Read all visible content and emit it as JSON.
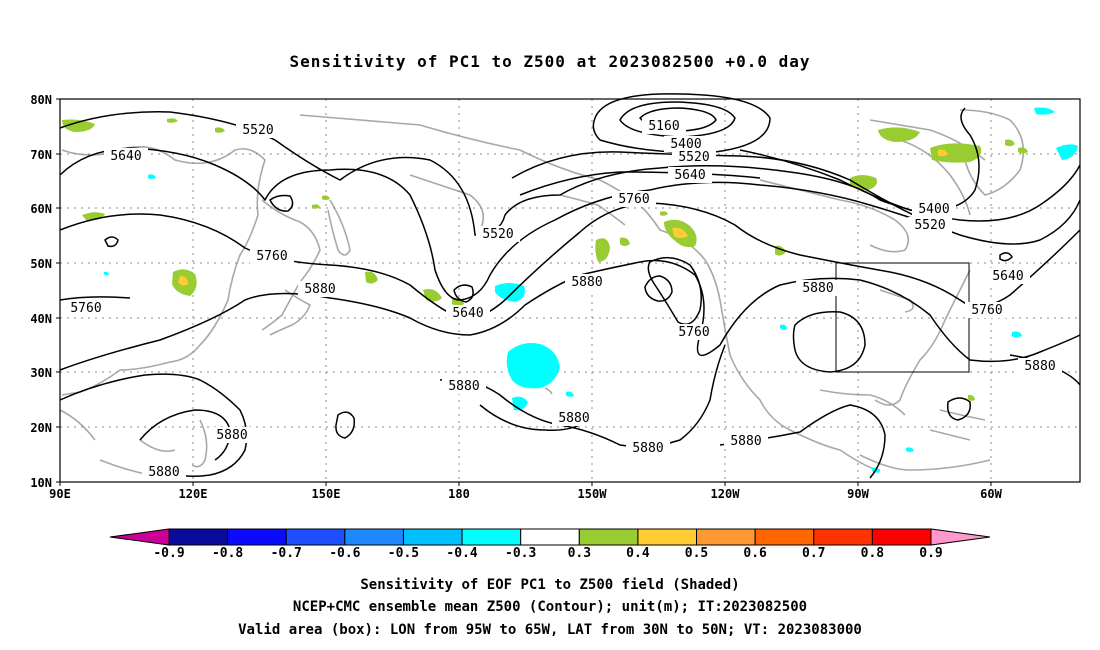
{
  "title": "Sensitivity of PC1 to Z500 at 2023082500 +0.0 day",
  "map": {
    "lat_labels": [
      "80N",
      "70N",
      "60N",
      "50N",
      "40N",
      "30N",
      "20N",
      "10N"
    ],
    "lon_labels": [
      "90E",
      "120E",
      "150E",
      "180",
      "150W",
      "120W",
      "90W",
      "60W"
    ],
    "contour_labels": [
      "5520",
      "5640",
      "5160",
      "5400",
      "5520",
      "5640",
      "5760",
      "5400",
      "5520",
      "5760",
      "5520",
      "5640",
      "5880",
      "5880",
      "5760",
      "5880",
      "5640",
      "5760",
      "5880",
      "5880",
      "5880",
      "5880",
      "5880",
      "5880",
      "5760",
      "5880"
    ],
    "valid_box": {
      "lon_from": "95W",
      "lon_to": "65W",
      "lat_from": "30N",
      "lat_to": "50N"
    }
  },
  "colorbar": {
    "labels": [
      "-0.9",
      "-0.8",
      "-0.7",
      "-0.6",
      "-0.5",
      "-0.4",
      "-0.3",
      "0.3",
      "0.4",
      "0.5",
      "0.6",
      "0.7",
      "0.8",
      "0.9"
    ],
    "colors": [
      "#0a0a9a",
      "#0a0aff",
      "#1e50ff",
      "#1e88ff",
      "#00c0ff",
      "#00ffff",
      "#ffffff",
      "#99cc33",
      "#ffcc33",
      "#ff9933",
      "#ff6600",
      "#ff3300",
      "#ff0000"
    ],
    "low_tip": "#cc0099",
    "high_tip": "#ff99cc"
  },
  "captions": {
    "line1": "Sensitivity of EOF PC1 to Z500 field (Shaded)",
    "line2": "NCEP+CMC ensemble mean Z500 (Contour); unit(m); IT:2023082500",
    "line3": "Valid area (box): LON from 95W to 65W, LAT from 30N to 50N; VT: 2023083000"
  }
}
